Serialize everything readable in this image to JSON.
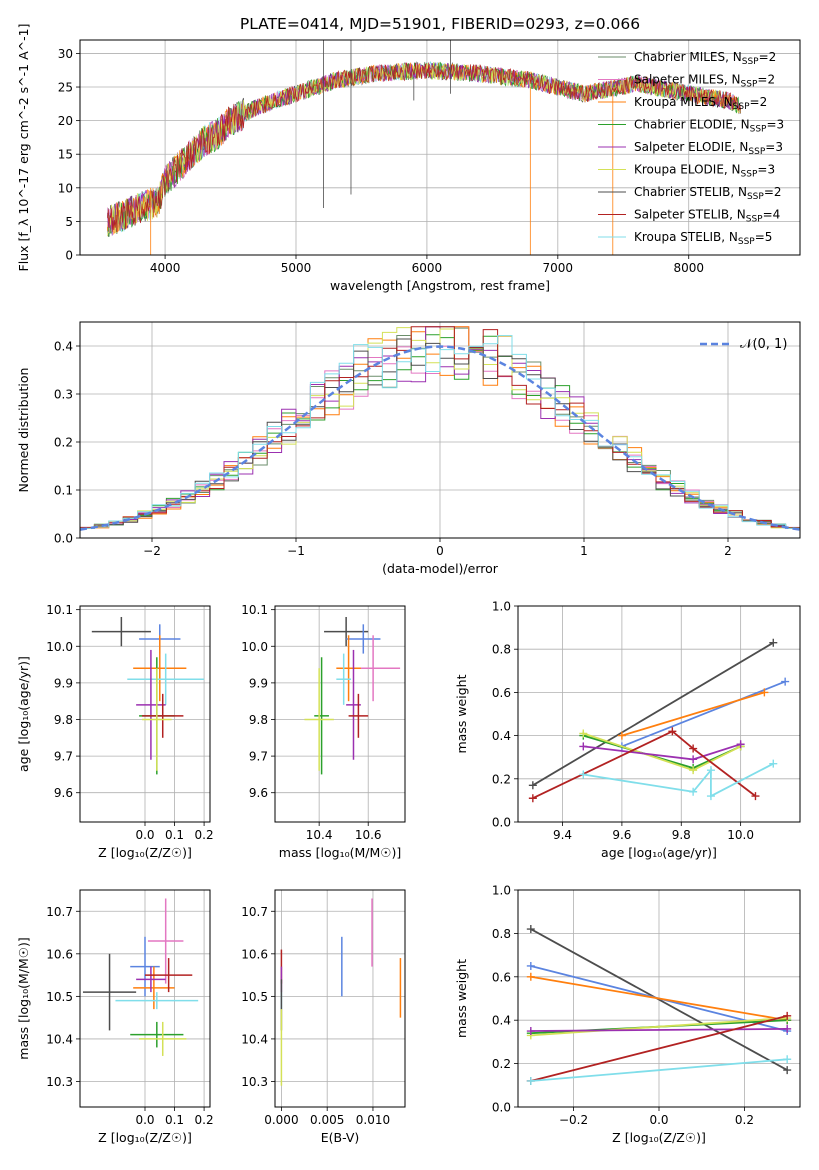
{
  "figure": {
    "title": "PLATE=0414, MJD=51901, FIBERID=0293, z=0.066"
  },
  "legend": {
    "entries": [
      {
        "name": "Chabrier MILES",
        "nssp": "2",
        "color": "#6b8e6b"
      },
      {
        "name": "Salpeter MILES",
        "nssp": "2",
        "color": "#e377c2"
      },
      {
        "name": "Kroupa MILES",
        "nssp": "2",
        "color": "#ff7f0e"
      },
      {
        "name": "Chabrier ELODIE",
        "nssp": "3",
        "color": "#2ca02c"
      },
      {
        "name": "Salpeter ELODIE",
        "nssp": "3",
        "color": "#9b30b0"
      },
      {
        "name": "Kroupa ELODIE",
        "nssp": "3",
        "color": "#d4e157"
      },
      {
        "name": "Chabrier STELIB",
        "nssp": "2",
        "color": "#4d4d4d"
      },
      {
        "name": "Salpeter STELIB",
        "nssp": "4",
        "color": "#b22222"
      },
      {
        "name": "Kroupa STELIB",
        "nssp": "5",
        "color": "#80deea"
      }
    ]
  },
  "chart_data": [
    {
      "id": "spectrum",
      "type": "line",
      "xlabel": "wavelength [Angstrom, rest frame]",
      "ylabel": "Flux [f_λ 10^-17 erg cm^-2 s^-1 A^-1]",
      "xlim": [
        3350,
        8850
      ],
      "ylim": [
        0,
        32
      ],
      "xticks": [
        4000,
        5000,
        6000,
        7000,
        8000
      ],
      "yticks": [
        0,
        5,
        10,
        15,
        20,
        25,
        30
      ],
      "continuum": {
        "x": [
          3560,
          3700,
          3800,
          3950,
          4000,
          4100,
          4200,
          4300,
          4400,
          4500,
          4700,
          5000,
          5300,
          5600,
          6000,
          6400,
          6800,
          7200,
          7600,
          8000,
          8300,
          8400
        ],
        "y": [
          5,
          6,
          7,
          8,
          11,
          13,
          15,
          17,
          18,
          20,
          22,
          24,
          26,
          27,
          27.5,
          27,
          26,
          24,
          25.5,
          24,
          23,
          22
        ]
      },
      "grid": true
    },
    {
      "id": "residuals",
      "type": "histogram",
      "xlabel": "(data-model)/error",
      "ylabel": "Normed distribution",
      "xlim": [
        -2.5,
        2.5
      ],
      "ylim": [
        0,
        0.45
      ],
      "xticks": [
        -2,
        -1,
        0,
        1,
        2
      ],
      "yticks": [
        0,
        0.1,
        0.2,
        0.3,
        0.4
      ],
      "reference_label": "𝒩(0, 1)",
      "reference_color": "#5b84e0",
      "bin_width": 0.1,
      "grid": true
    },
    {
      "id": "age-vs-Z",
      "type": "scatter",
      "xlabel": "Z [log₁₀(Z/Z☉)]",
      "ylabel": "age  [log₁₀(age/yr)]",
      "xlim": [
        -0.22,
        0.22
      ],
      "ylim": [
        9.52,
        10.11
      ],
      "xticks": [
        0.0,
        0.1,
        0.2
      ],
      "yticks": [
        9.6,
        9.7,
        9.8,
        9.9,
        10.0,
        10.1
      ],
      "points": [
        {
          "color": "#4d4d4d",
          "x": -0.08,
          "xerr": 0.1,
          "y": 10.04,
          "yerr": 0.04
        },
        {
          "color": "#5b84e0",
          "x": 0.05,
          "xerr": 0.07,
          "y": 10.02,
          "yerr": 0.04
        },
        {
          "color": "#ff7f0e",
          "x": 0.05,
          "xerr": 0.09,
          "y": 9.94,
          "yerr": 0.09
        },
        {
          "color": "#80deea",
          "x": 0.07,
          "xerr": 0.13,
          "y": 9.91,
          "yerr": 0.07
        },
        {
          "color": "#9b30b0",
          "x": 0.02,
          "xerr": 0.05,
          "y": 9.84,
          "yerr": 0.15
        },
        {
          "color": "#2ca02c",
          "x": 0.04,
          "xerr": 0.06,
          "y": 9.81,
          "yerr": 0.16
        },
        {
          "color": "#b22222",
          "x": 0.06,
          "xerr": 0.07,
          "y": 9.81,
          "yerr": 0.06
        },
        {
          "color": "#d4e157",
          "x": 0.04,
          "xerr": 0.05,
          "y": 9.8,
          "yerr": 0.14
        }
      ]
    },
    {
      "id": "age-vs-mass",
      "type": "scatter",
      "xlabel": "mass [log₁₀(M/M☉)]",
      "ylabel": "",
      "xlim": [
        10.22,
        10.75
      ],
      "ylim": [
        9.52,
        10.11
      ],
      "xticks": [
        10.4,
        10.6
      ],
      "yticks": [
        9.6,
        9.7,
        9.8,
        9.9,
        10.0,
        10.1
      ],
      "points": [
        {
          "color": "#4d4d4d",
          "x": 10.51,
          "xerr": 0.09,
          "y": 10.04,
          "yerr": 0.04
        },
        {
          "color": "#5b84e0",
          "x": 10.58,
          "xerr": 0.07,
          "y": 10.02,
          "yerr": 0.04
        },
        {
          "color": "#e377c2",
          "x": 10.62,
          "xerr": 0.11,
          "y": 9.94,
          "yerr": 0.09
        },
        {
          "color": "#ff7f0e",
          "x": 10.52,
          "xerr": 0.05,
          "y": 9.94,
          "yerr": 0.09
        },
        {
          "color": "#80deea",
          "x": 10.5,
          "xerr": 0.03,
          "y": 9.91,
          "yerr": 0.07
        },
        {
          "color": "#9b30b0",
          "x": 10.54,
          "xerr": 0.03,
          "y": 9.84,
          "yerr": 0.15
        },
        {
          "color": "#b22222",
          "x": 10.56,
          "xerr": 0.04,
          "y": 9.81,
          "yerr": 0.06
        },
        {
          "color": "#2ca02c",
          "x": 10.41,
          "xerr": 0.03,
          "y": 9.81,
          "yerr": 0.16
        },
        {
          "color": "#d4e157",
          "x": 10.4,
          "xerr": 0.06,
          "y": 9.8,
          "yerr": 0.14
        }
      ]
    },
    {
      "id": "massweight-vs-age",
      "type": "line",
      "xlabel": "age  [log₁₀(age/yr)]",
      "ylabel": "mass weight",
      "xlim": [
        9.25,
        10.2
      ],
      "ylim": [
        0.0,
        1.0
      ],
      "xticks": [
        9.4,
        9.6,
        9.8,
        10.0
      ],
      "yticks": [
        0.0,
        0.2,
        0.4,
        0.6,
        0.8,
        1.0
      ],
      "series": [
        {
          "color": "#4d4d4d",
          "x": [
            9.3,
            10.11
          ],
          "y": [
            0.17,
            0.83
          ]
        },
        {
          "color": "#5b84e0",
          "x": [
            9.6,
            10.15
          ],
          "y": [
            0.35,
            0.65
          ]
        },
        {
          "color": "#ff7f0e",
          "x": [
            9.6,
            10.08
          ],
          "y": [
            0.4,
            0.6
          ]
        },
        {
          "color": "#2ca02c",
          "x": [
            9.47,
            9.84,
            10.0
          ],
          "y": [
            0.4,
            0.25,
            0.35
          ]
        },
        {
          "color": "#d4e157",
          "x": [
            9.47,
            9.84,
            10.0
          ],
          "y": [
            0.41,
            0.24,
            0.35
          ]
        },
        {
          "color": "#9b30b0",
          "x": [
            9.47,
            9.84,
            10.0
          ],
          "y": [
            0.35,
            0.29,
            0.36
          ]
        },
        {
          "color": "#b22222",
          "x": [
            9.3,
            9.77,
            9.84,
            10.05
          ],
          "y": [
            0.11,
            0.42,
            0.34,
            0.12
          ]
        },
        {
          "color": "#80deea",
          "x": [
            9.47,
            9.84,
            9.9,
            9.9,
            10.11
          ],
          "y": [
            0.22,
            0.14,
            0.24,
            0.12,
            0.27
          ]
        }
      ]
    },
    {
      "id": "mass-vs-Z",
      "type": "scatter",
      "xlabel": "Z [log₁₀(Z/Z☉)]",
      "ylabel": "mass [log₁₀(M/M☉)]",
      "xlim": [
        -0.22,
        0.22
      ],
      "ylim": [
        10.24,
        10.75
      ],
      "xticks": [
        0.0,
        0.1,
        0.2
      ],
      "yticks": [
        10.3,
        10.4,
        10.5,
        10.6,
        10.7
      ],
      "points": [
        {
          "color": "#4d4d4d",
          "x": -0.12,
          "xerr": 0.09,
          "y": 10.51,
          "yerr": 0.09
        },
        {
          "color": "#5b84e0",
          "x": 0.0,
          "xerr": 0.05,
          "y": 10.57,
          "yerr": 0.07
        },
        {
          "color": "#e377c2",
          "x": 0.07,
          "xerr": 0.06,
          "y": 10.63,
          "yerr": 0.1
        },
        {
          "color": "#ff7f0e",
          "x": 0.03,
          "xerr": 0.07,
          "y": 10.52,
          "yerr": 0.05
        },
        {
          "color": "#80deea",
          "x": 0.04,
          "xerr": 0.14,
          "y": 10.49,
          "yerr": 0.02
        },
        {
          "color": "#9b30b0",
          "x": 0.02,
          "xerr": 0.05,
          "y": 10.54,
          "yerr": 0.03
        },
        {
          "color": "#b22222",
          "x": 0.08,
          "xerr": 0.08,
          "y": 10.55,
          "yerr": 0.04
        },
        {
          "color": "#2ca02c",
          "x": 0.04,
          "xerr": 0.09,
          "y": 10.41,
          "yerr": 0.03
        },
        {
          "color": "#d4e157",
          "x": 0.06,
          "xerr": 0.08,
          "y": 10.4,
          "yerr": 0.04
        }
      ]
    },
    {
      "id": "mass-vs-ebv",
      "type": "scatter",
      "xlabel": "E(B-V)",
      "ylabel": "",
      "xlim": [
        -0.0007,
        0.0135
      ],
      "ylim": [
        10.24,
        10.75
      ],
      "xticks": [
        0.0,
        0.005,
        0.01
      ],
      "xtick_labels": [
        "0.000",
        "0.005",
        "0.010"
      ],
      "yticks": [
        10.3,
        10.4,
        10.5,
        10.6,
        10.7
      ],
      "points": [
        {
          "color": "#b22222",
          "x": 0.0,
          "y": 10.57,
          "yerr": 0.04
        },
        {
          "color": "#80deea",
          "x": 0.0,
          "y": 10.49,
          "yerr": 0.02
        },
        {
          "color": "#9b30b0",
          "x": 0.0,
          "y": 10.54,
          "yerr": 0.03
        },
        {
          "color": "#4d4d4d",
          "x": 0.0,
          "y": 10.48,
          "yerr": 0.06
        },
        {
          "color": "#d4e157",
          "x": 0.0,
          "y": 10.38,
          "yerr": 0.09
        },
        {
          "color": "#5b84e0",
          "x": 0.0066,
          "y": 10.57,
          "yerr": 0.07
        },
        {
          "color": "#e377c2",
          "x": 0.0099,
          "y": 10.65,
          "yerr": 0.08
        },
        {
          "color": "#ff7f0e",
          "x": 0.013,
          "y": 10.52,
          "yerr": 0.07
        }
      ]
    },
    {
      "id": "massweight-vs-Z",
      "type": "line",
      "xlabel": "Z [log₁₀(Z/Z☉)]",
      "ylabel": "mass weight",
      "xlim": [
        -0.33,
        0.33
      ],
      "ylim": [
        0.0,
        1.0
      ],
      "xticks": [
        -0.2,
        0.0,
        0.2
      ],
      "yticks": [
        0.0,
        0.2,
        0.4,
        0.6,
        0.8,
        1.0
      ],
      "series": [
        {
          "color": "#4d4d4d",
          "x": [
            -0.3,
            0.3
          ],
          "y": [
            0.82,
            0.17
          ]
        },
        {
          "color": "#5b84e0",
          "x": [
            -0.3,
            0.3
          ],
          "y": [
            0.65,
            0.35
          ]
        },
        {
          "color": "#ff7f0e",
          "x": [
            -0.3,
            0.3
          ],
          "y": [
            0.6,
            0.4
          ]
        },
        {
          "color": "#2ca02c",
          "x": [
            -0.3,
            0.3
          ],
          "y": [
            0.34,
            0.4
          ]
        },
        {
          "color": "#d4e157",
          "x": [
            -0.3,
            0.3
          ],
          "y": [
            0.33,
            0.41
          ]
        },
        {
          "color": "#9b30b0",
          "x": [
            -0.3,
            0.3
          ],
          "y": [
            0.35,
            0.36
          ]
        },
        {
          "color": "#b22222",
          "x": [
            -0.3,
            0.3
          ],
          "y": [
            0.12,
            0.42
          ]
        },
        {
          "color": "#80deea",
          "x": [
            -0.3,
            0.3
          ],
          "y": [
            0.12,
            0.22
          ]
        }
      ]
    }
  ]
}
